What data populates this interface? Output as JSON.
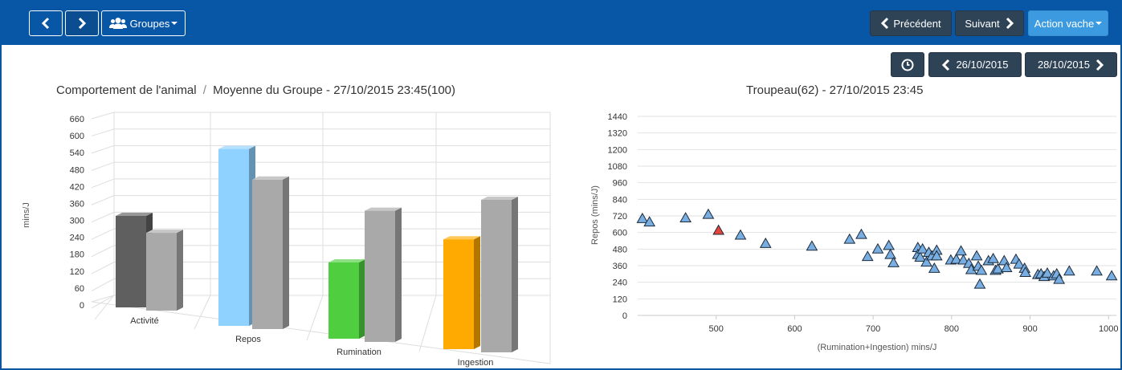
{
  "toolbar": {
    "groups_label": "Groupes",
    "previous_label": "Précédent",
    "next_label": "Suivant",
    "action_label": "Action vache",
    "date_prev": "26/10/2015",
    "date_next": "28/10/2015"
  },
  "chart_data": [
    {
      "type": "bar",
      "title_main": "Comportement de l'animal",
      "title_separator": "/",
      "title_sub": "Moyenne du Groupe - 27/10/2015 23:45(100)",
      "ylabel": "mins/J",
      "ylim": [
        0,
        660
      ],
      "yticks": [
        "660",
        "600",
        "540",
        "480",
        "420",
        "360",
        "300",
        "240",
        "180",
        "120",
        "60",
        "0"
      ],
      "categories": [
        "Activité",
        "Repos",
        "Rumination",
        "Ingestion"
      ],
      "colors": [
        "#5f5f5f",
        "#8fd1ff",
        "#4fcf3f",
        "#ffaa00"
      ],
      "series": [
        {
          "values": [
            300,
            580,
            250,
            360
          ]
        },
        {
          "values": [
            255,
            490,
            430,
            500
          ]
        }
      ],
      "series_colors": [
        "category",
        "#a9a9a9"
      ],
      "grid": true,
      "three_d": true
    },
    {
      "type": "scatter",
      "title": "Troupeau(62) - 27/10/2015 23:45",
      "xlabel": "(Rumination+Ingestion) mins/J",
      "ylabel": "Repos (mins/J)",
      "xlim": [
        400,
        1010
      ],
      "ylim": [
        0,
        1440
      ],
      "xticks": [
        "500",
        "600",
        "700",
        "800",
        "900",
        "1000"
      ],
      "yticks": [
        "1440",
        "1320",
        "1200",
        "1080",
        "960",
        "840",
        "720",
        "600",
        "480",
        "360",
        "240",
        "120",
        "0"
      ],
      "marker": "triangle",
      "color": "#79aee2",
      "highlight_color": "#e5443a",
      "points": [
        [
          406,
          700
        ],
        [
          415,
          675
        ],
        [
          461,
          705
        ],
        [
          490,
          730
        ],
        [
          531,
          580
        ],
        [
          563,
          520
        ],
        [
          622,
          500
        ],
        [
          670,
          550
        ],
        [
          685,
          585
        ],
        [
          693,
          425
        ],
        [
          706,
          480
        ],
        [
          720,
          505
        ],
        [
          722,
          440
        ],
        [
          726,
          380
        ],
        [
          757,
          490
        ],
        [
          757,
          440
        ],
        [
          760,
          420
        ],
        [
          763,
          480
        ],
        [
          768,
          385
        ],
        [
          771,
          455
        ],
        [
          775,
          430
        ],
        [
          778,
          340
        ],
        [
          781,
          470
        ],
        [
          781,
          430
        ],
        [
          799,
          400
        ],
        [
          806,
          405
        ],
        [
          812,
          465
        ],
        [
          815,
          400
        ],
        [
          822,
          375
        ],
        [
          825,
          330
        ],
        [
          832,
          430
        ],
        [
          834,
          355
        ],
        [
          836,
          225
        ],
        [
          838,
          325
        ],
        [
          847,
          395
        ],
        [
          853,
          410
        ],
        [
          856,
          325
        ],
        [
          859,
          335
        ],
        [
          867,
          395
        ],
        [
          870,
          345
        ],
        [
          882,
          405
        ],
        [
          886,
          370
        ],
        [
          893,
          340
        ],
        [
          894,
          310
        ],
        [
          910,
          295
        ],
        [
          914,
          300
        ],
        [
          918,
          280
        ],
        [
          922,
          305
        ],
        [
          930,
          285
        ],
        [
          934,
          300
        ],
        [
          937,
          260
        ],
        [
          950,
          320
        ],
        [
          985,
          320
        ],
        [
          1004,
          285
        ]
      ],
      "highlight_points": [
        [
          503,
          615
        ]
      ],
      "grid": true
    }
  ]
}
